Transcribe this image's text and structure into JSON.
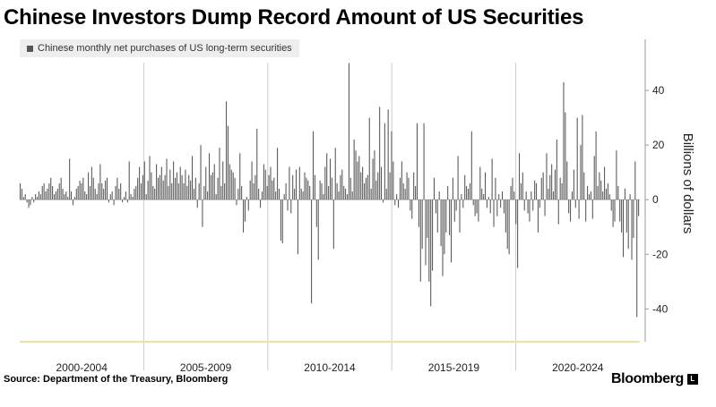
{
  "title": "Chinese Investors Dump Record Amount of US Securities",
  "legend_label": "Chinese monthly net purchases of US long-term securities",
  "source": "Source: Department of the Treasury, Bloomberg",
  "brand": "Bloomberg",
  "brand_mark": "L",
  "colors": {
    "bar": "#555555",
    "grid": "#cccccc",
    "axis_bottom": "#e8e4a8"
  },
  "chart_data": {
    "type": "bar",
    "ylabel": "Billions of dollars",
    "ylim": [
      -52,
      60
    ],
    "yticks": [
      -40,
      -20,
      0,
      20,
      40
    ],
    "x_labels": [
      "2000-2004",
      "2005-2009",
      "2010-2014",
      "2015-2019",
      "2020-2024"
    ],
    "x_start": "2000-01",
    "series": [
      {
        "values": [
          6,
          4,
          1,
          2,
          -1,
          -3,
          -2,
          1,
          -1,
          2,
          1,
          3,
          2,
          5,
          6,
          3,
          4,
          6,
          8,
          5,
          2,
          3,
          4,
          6,
          8,
          4,
          2,
          3,
          1,
          15,
          3,
          -2,
          1,
          4,
          5,
          7,
          6,
          8,
          3,
          2,
          10,
          5,
          12,
          8,
          4,
          2,
          6,
          13,
          6,
          4,
          7,
          8,
          -1,
          2,
          3,
          -2,
          5,
          8,
          4,
          6,
          -1,
          1,
          3,
          -1,
          14,
          2,
          1,
          4,
          5,
          8,
          12,
          6,
          9,
          14,
          2,
          7,
          16,
          10,
          5,
          4,
          13,
          8,
          9,
          12,
          7,
          9,
          15,
          5,
          11,
          6,
          14,
          8,
          10,
          6,
          12,
          9,
          6,
          11,
          5,
          9,
          7,
          16,
          4,
          8,
          -3,
          6,
          20,
          -10,
          5,
          12,
          3,
          17,
          9,
          10,
          13,
          2,
          8,
          19,
          5,
          14,
          6,
          36,
          27,
          13,
          11,
          10,
          8,
          -2,
          4,
          17,
          5,
          -12,
          -8,
          1,
          -4,
          7,
          14,
          6,
          9,
          26,
          4,
          -3,
          3,
          13,
          11,
          5,
          9,
          12,
          7,
          8,
          3,
          19,
          4,
          -15,
          -16,
          2,
          6,
          -4,
          12,
          -5,
          9,
          4,
          11,
          -20,
          12,
          4,
          3,
          10,
          8,
          7,
          5,
          -38,
          25,
          9,
          -10,
          -22,
          7,
          6,
          2,
          12,
          17,
          5,
          15,
          8,
          -18,
          19,
          6,
          3,
          9,
          11,
          5,
          4,
          2,
          50,
          8,
          3,
          22,
          18,
          14,
          16,
          10,
          12,
          6,
          8,
          9,
          30,
          4,
          15,
          18,
          7,
          10,
          34,
          12,
          -1,
          28,
          4,
          33,
          10,
          25,
          14,
          -2,
          2,
          -3,
          8,
          14,
          6,
          4,
          10,
          8,
          -4,
          -7,
          10,
          5,
          28,
          -10,
          -30,
          -18,
          28,
          -24,
          -14,
          -30,
          -39,
          -26,
          8,
          -5,
          -12,
          3,
          -17,
          -28,
          -20,
          -12,
          5,
          -13,
          -23,
          8,
          -8,
          -4,
          16,
          -12,
          2,
          -3,
          9,
          5,
          4,
          6,
          25,
          -2,
          -6,
          -5,
          -8,
          12,
          4,
          2,
          10,
          -3,
          1,
          -5,
          15,
          -10,
          8,
          -6,
          2,
          -3,
          3,
          -5,
          -12,
          -18,
          -20,
          5,
          8,
          3,
          -9,
          -25,
          17,
          6,
          10,
          -4,
          3,
          -5,
          -8,
          3,
          -4,
          7,
          6,
          -12,
          -3,
          8,
          10,
          -6,
          17,
          4,
          9,
          13,
          3,
          11,
          22,
          -9,
          8,
          6,
          43,
          32,
          14,
          -5,
          -8,
          3,
          11,
          -3,
          30,
          -7,
          20,
          31,
          10,
          -8,
          5,
          2,
          3,
          -7,
          16,
          25,
          5,
          10,
          7,
          3,
          12,
          4,
          6,
          2,
          -4,
          -10,
          -8,
          18,
          5,
          -8,
          -12,
          -21,
          4,
          -12,
          -18,
          2,
          -22,
          -14,
          14,
          -43,
          -6
        ]
      }
    ]
  }
}
